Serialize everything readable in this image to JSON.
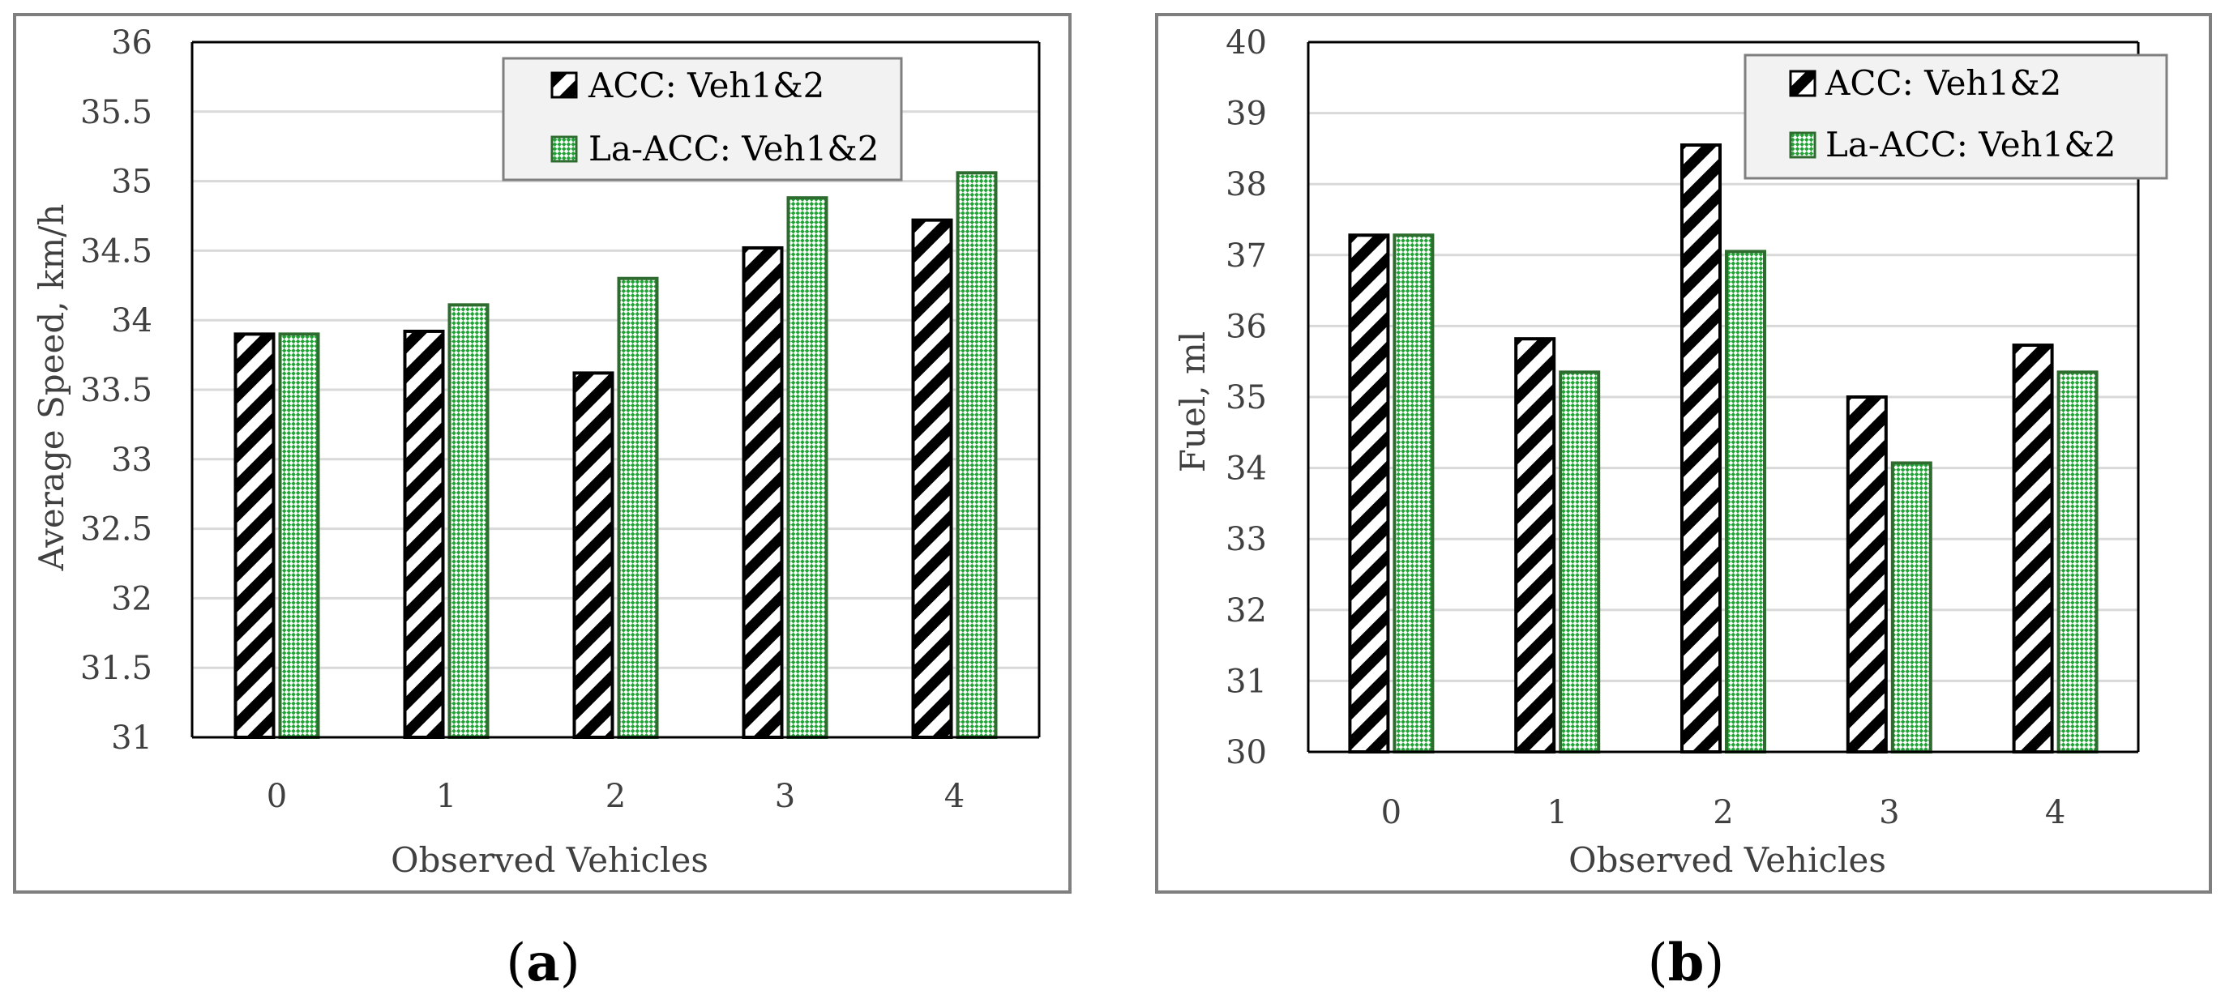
{
  "chart_data": [
    {
      "type": "bar",
      "panel_label": "a",
      "xlabel": "Observed Vehicles",
      "ylabel": "Average Speed, km/h",
      "categories": [
        "0",
        "1",
        "2",
        "3",
        "4"
      ],
      "ylim": [
        31,
        36
      ],
      "yticks": [
        31,
        31.5,
        32,
        32.5,
        33,
        33.5,
        34,
        34.5,
        35,
        35.5,
        36
      ],
      "grid": true,
      "legend_position": "top-right",
      "series": [
        {
          "name": "ACC: Veh1&2",
          "pattern": "diagonal-black",
          "values": [
            33.9,
            33.92,
            33.62,
            34.52,
            34.72
          ]
        },
        {
          "name": "La-ACC: Veh1&2",
          "pattern": "checker-green",
          "values": [
            33.9,
            34.11,
            34.3,
            34.88,
            35.06
          ]
        }
      ]
    },
    {
      "type": "bar",
      "panel_label": "b",
      "xlabel": "Observed Vehicles",
      "ylabel": "Fuel, ml",
      "categories": [
        "0",
        "1",
        "2",
        "3",
        "4"
      ],
      "ylim": [
        30,
        40
      ],
      "yticks": [
        30,
        31,
        32,
        33,
        34,
        35,
        36,
        37,
        38,
        39,
        40
      ],
      "grid": true,
      "legend_position": "top-right",
      "series": [
        {
          "name": "ACC: Veh1&2",
          "pattern": "diagonal-black",
          "values": [
            37.28,
            35.82,
            38.55,
            35.0,
            35.73
          ]
        },
        {
          "name": "La-ACC: Veh1&2",
          "pattern": "checker-green",
          "values": [
            37.28,
            35.35,
            37.05,
            34.07,
            35.35
          ]
        }
      ]
    }
  ],
  "colors": {
    "acc_stroke": "#000000",
    "la_acc_stroke": "#2e6b2e",
    "la_acc_fill": "#21a336"
  }
}
